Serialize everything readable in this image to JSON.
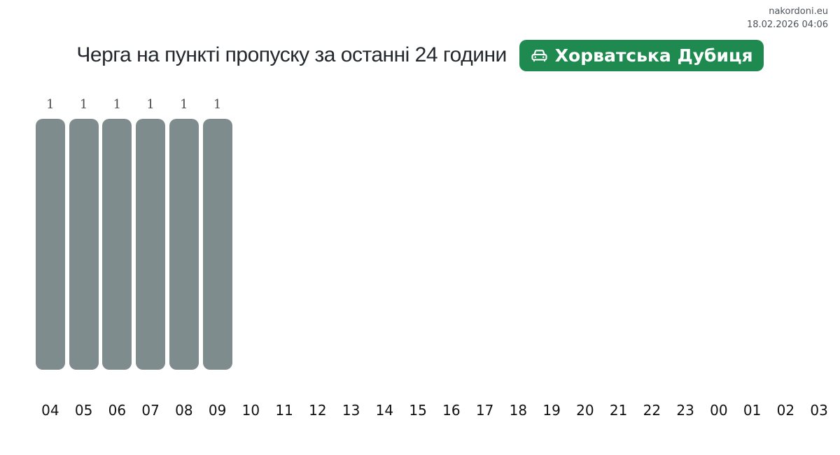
{
  "site": {
    "name": "nakordoni.eu",
    "timestamp": "18.02.2026 04:06"
  },
  "header": {
    "title": "Черга на пункті пропуску за останні 24 години",
    "checkpoint_badge": {
      "label": "Хорватська Дубиця",
      "icon": "car-front-icon",
      "background_color": "#1e8a50",
      "text_color": "#ffffff"
    }
  },
  "chart_data": {
    "type": "bar",
    "title": "Черга на пункті пропуску за останні 24 години",
    "categories": [
      "04",
      "05",
      "06",
      "07",
      "08",
      "09",
      "10",
      "11",
      "12",
      "13",
      "14",
      "15",
      "16",
      "17",
      "18",
      "19",
      "20",
      "21",
      "22",
      "23",
      "00",
      "01",
      "02",
      "03"
    ],
    "values": [
      1,
      1,
      1,
      1,
      1,
      1,
      0,
      0,
      0,
      0,
      0,
      0,
      0,
      0,
      0,
      0,
      0,
      0,
      0,
      0,
      0,
      0,
      0,
      0
    ],
    "xlabel": "",
    "ylabel": "",
    "ylim": [
      0,
      1
    ],
    "bar_color": "#7f8c8d",
    "value_label_color": "#4d4d4d",
    "axis_label_color": "#111111",
    "grid": false,
    "legend": false,
    "value_labels": "shown above non-zero bars only"
  }
}
